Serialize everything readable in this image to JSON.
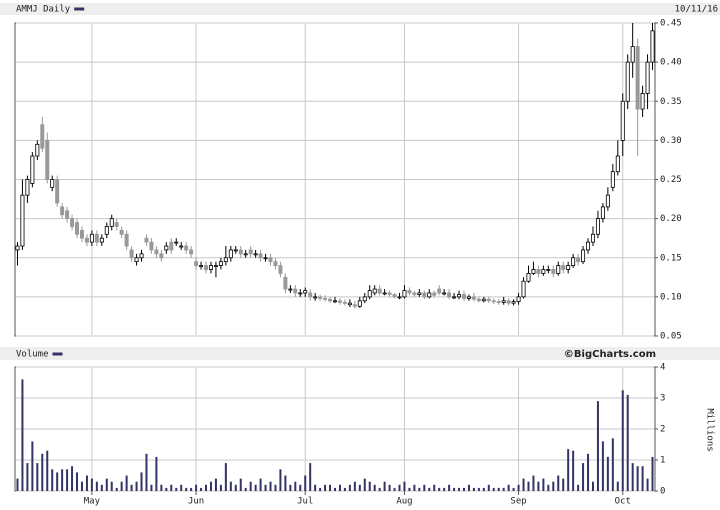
{
  "chart_data": [
    {
      "type": "candlestick",
      "title": "AMMJ Daily",
      "date": "10/11/16",
      "categories": [
        null,
        null,
        null,
        null,
        null,
        null,
        null,
        null,
        null,
        null,
        null,
        null,
        null,
        null,
        null,
        "May",
        null,
        null,
        null,
        null,
        null,
        null,
        null,
        null,
        null,
        null,
        null,
        null,
        null,
        null,
        null,
        null,
        null,
        null,
        null,
        null,
        "Jun",
        null,
        null,
        null,
        null,
        null,
        null,
        null,
        null,
        null,
        null,
        null,
        null,
        null,
        null,
        null,
        null,
        null,
        null,
        null,
        null,
        null,
        "Jul",
        null,
        null,
        null,
        null,
        null,
        null,
        null,
        null,
        null,
        null,
        null,
        null,
        null,
        null,
        null,
        null,
        null,
        null,
        null,
        "Aug",
        null,
        null,
        null,
        null,
        null,
        null,
        null,
        null,
        null,
        null,
        null,
        null,
        null,
        null,
        null,
        null,
        null,
        null,
        null,
        null,
        null,
        null,
        "Sep",
        null,
        null,
        null,
        null,
        null,
        null,
        null,
        null,
        null,
        null,
        null,
        null,
        null,
        null,
        null,
        null,
        null,
        null,
        null,
        null,
        "Oct",
        null,
        null,
        null,
        null,
        null,
        null
      ],
      "open": [
        0.16,
        0.165,
        0.23,
        0.245,
        0.28,
        0.32,
        0.3,
        0.24,
        0.25,
        0.215,
        0.21,
        0.2,
        0.195,
        0.185,
        0.175,
        0.17,
        0.18,
        0.17,
        0.18,
        0.19,
        0.195,
        0.185,
        0.18,
        0.16,
        0.145,
        0.15,
        0.175,
        0.17,
        0.16,
        0.155,
        0.16,
        0.17,
        0.17,
        0.165,
        0.165,
        0.16,
        0.145,
        0.14,
        0.14,
        0.135,
        0.14,
        0.14,
        0.145,
        0.15,
        0.16,
        0.16,
        0.155,
        0.16,
        0.155,
        0.155,
        0.15,
        0.15,
        0.145,
        0.14,
        0.125,
        0.11,
        0.11,
        0.105,
        0.105,
        0.105,
        0.1,
        0.1,
        0.098,
        0.097,
        0.095,
        0.095,
        0.093,
        0.09,
        0.09,
        0.088,
        0.095,
        0.1,
        0.105,
        0.11,
        0.105,
        0.105,
        0.103,
        0.1,
        0.1,
        0.108,
        0.105,
        0.103,
        0.105,
        0.1,
        0.105,
        0.11,
        0.105,
        0.105,
        0.1,
        0.1,
        0.103,
        0.098,
        0.1,
        0.097,
        0.095,
        0.097,
        0.095,
        0.094,
        0.093,
        0.095,
        0.092,
        0.094,
        0.1,
        0.12,
        0.13,
        0.135,
        0.13,
        0.135,
        0.135,
        0.13,
        0.14,
        0.135,
        0.14,
        0.15,
        0.145,
        0.16,
        0.17,
        0.18,
        0.2,
        0.215,
        0.24,
        0.26,
        0.3,
        0.35,
        0.4,
        0.42,
        0.34,
        0.36,
        0.4
      ],
      "high": [
        0.17,
        0.25,
        0.255,
        0.285,
        0.3,
        0.33,
        0.31,
        0.255,
        0.255,
        0.22,
        0.215,
        0.205,
        0.2,
        0.19,
        0.18,
        0.185,
        0.185,
        0.18,
        0.195,
        0.205,
        0.2,
        0.19,
        0.185,
        0.165,
        0.155,
        0.16,
        0.18,
        0.175,
        0.165,
        0.16,
        0.17,
        0.175,
        0.175,
        0.17,
        0.17,
        0.165,
        0.15,
        0.145,
        0.145,
        0.145,
        0.145,
        0.15,
        0.165,
        0.165,
        0.165,
        0.165,
        0.16,
        0.165,
        0.16,
        0.16,
        0.155,
        0.155,
        0.15,
        0.145,
        0.13,
        0.115,
        0.115,
        0.11,
        0.112,
        0.11,
        0.105,
        0.103,
        0.102,
        0.1,
        0.1,
        0.098,
        0.097,
        0.097,
        0.095,
        0.1,
        0.105,
        0.115,
        0.115,
        0.115,
        0.11,
        0.108,
        0.105,
        0.105,
        0.115,
        0.112,
        0.108,
        0.11,
        0.108,
        0.11,
        0.108,
        0.115,
        0.11,
        0.11,
        0.105,
        0.108,
        0.108,
        0.103,
        0.105,
        0.1,
        0.1,
        0.1,
        0.098,
        0.097,
        0.1,
        0.098,
        0.097,
        0.105,
        0.125,
        0.14,
        0.145,
        0.14,
        0.14,
        0.14,
        0.14,
        0.145,
        0.145,
        0.145,
        0.155,
        0.155,
        0.165,
        0.175,
        0.19,
        0.21,
        0.22,
        0.24,
        0.27,
        0.3,
        0.36,
        0.41,
        0.45,
        0.43,
        0.37,
        0.41,
        0.45
      ],
      "low": [
        0.14,
        0.16,
        0.22,
        0.24,
        0.275,
        0.285,
        0.245,
        0.235,
        0.215,
        0.2,
        0.195,
        0.185,
        0.175,
        0.17,
        0.165,
        0.165,
        0.165,
        0.165,
        0.175,
        0.185,
        0.185,
        0.175,
        0.16,
        0.145,
        0.14,
        0.145,
        0.165,
        0.155,
        0.15,
        0.145,
        0.155,
        0.155,
        0.165,
        0.16,
        0.155,
        0.15,
        0.135,
        0.135,
        0.13,
        0.13,
        0.125,
        0.135,
        0.14,
        0.145,
        0.155,
        0.15,
        0.15,
        0.15,
        0.15,
        0.145,
        0.145,
        0.14,
        0.135,
        0.125,
        0.105,
        0.105,
        0.1,
        0.1,
        0.1,
        0.095,
        0.095,
        0.095,
        0.094,
        0.092,
        0.092,
        0.09,
        0.089,
        0.087,
        0.085,
        0.086,
        0.092,
        0.097,
        0.102,
        0.102,
        0.102,
        0.1,
        0.098,
        0.097,
        0.098,
        0.102,
        0.1,
        0.1,
        0.097,
        0.098,
        0.099,
        0.102,
        0.102,
        0.097,
        0.097,
        0.097,
        0.095,
        0.095,
        0.094,
        0.093,
        0.093,
        0.092,
        0.091,
        0.09,
        0.09,
        0.089,
        0.089,
        0.09,
        0.098,
        0.118,
        0.128,
        0.125,
        0.127,
        0.13,
        0.125,
        0.127,
        0.13,
        0.13,
        0.137,
        0.14,
        0.142,
        0.155,
        0.165,
        0.175,
        0.195,
        0.21,
        0.235,
        0.255,
        0.28,
        0.34,
        0.38,
        0.28,
        0.33,
        0.34,
        0.39
      ],
      "close": [
        0.165,
        0.23,
        0.25,
        0.28,
        0.295,
        0.29,
        0.25,
        0.25,
        0.22,
        0.205,
        0.2,
        0.19,
        0.18,
        0.175,
        0.17,
        0.18,
        0.17,
        0.175,
        0.19,
        0.2,
        0.19,
        0.18,
        0.165,
        0.15,
        0.15,
        0.155,
        0.17,
        0.16,
        0.155,
        0.15,
        0.165,
        0.16,
        0.17,
        0.165,
        0.16,
        0.155,
        0.14,
        0.14,
        0.135,
        0.14,
        0.14,
        0.145,
        0.15,
        0.16,
        0.16,
        0.155,
        0.155,
        0.155,
        0.155,
        0.15,
        0.15,
        0.145,
        0.14,
        0.13,
        0.11,
        0.11,
        0.105,
        0.105,
        0.108,
        0.1,
        0.1,
        0.098,
        0.097,
        0.095,
        0.095,
        0.093,
        0.092,
        0.092,
        0.088,
        0.095,
        0.1,
        0.108,
        0.11,
        0.105,
        0.105,
        0.103,
        0.1,
        0.1,
        0.108,
        0.105,
        0.103,
        0.105,
        0.1,
        0.105,
        0.102,
        0.105,
        0.105,
        0.1,
        0.1,
        0.103,
        0.098,
        0.1,
        0.097,
        0.095,
        0.097,
        0.095,
        0.094,
        0.093,
        0.095,
        0.092,
        0.094,
        0.1,
        0.12,
        0.13,
        0.135,
        0.13,
        0.135,
        0.135,
        0.13,
        0.14,
        0.135,
        0.14,
        0.15,
        0.145,
        0.16,
        0.17,
        0.18,
        0.2,
        0.215,
        0.23,
        0.26,
        0.28,
        0.35,
        0.4,
        0.42,
        0.34,
        0.36,
        0.4,
        0.44
      ],
      "up_color": "#ffffff",
      "down_color": "#999999",
      "outline_color": "#000000",
      "ylim": [
        0.05,
        0.45
      ],
      "yticks": [
        0.05,
        {
          "value": 0.1,
          "label": "0.10"
        },
        0.15,
        {
          "value": 0.2,
          "label": "0.20"
        },
        0.25,
        {
          "value": 0.3,
          "label": "0.30"
        },
        0.35,
        {
          "value": 0.4,
          "label": "0.40"
        },
        0.45
      ],
      "grid": true
    },
    {
      "type": "bar",
      "title": "Volume",
      "source": "©BigCharts.com",
      "y_label": "Millions",
      "color": "#333366",
      "values": [
        0.4,
        3.6,
        0.9,
        1.6,
        0.9,
        1.2,
        1.3,
        0.7,
        0.6,
        0.7,
        0.7,
        0.8,
        0.6,
        0.3,
        0.5,
        0.4,
        0.3,
        0.2,
        0.4,
        0.3,
        0.1,
        0.3,
        0.5,
        0.2,
        0.3,
        0.6,
        1.2,
        0.2,
        1.1,
        0.2,
        0.1,
        0.2,
        0.1,
        0.2,
        0.1,
        0.1,
        0.2,
        0.1,
        0.2,
        0.3,
        0.4,
        0.2,
        0.9,
        0.3,
        0.2,
        0.4,
        0.1,
        0.3,
        0.2,
        0.4,
        0.2,
        0.3,
        0.2,
        0.7,
        0.5,
        0.2,
        0.3,
        0.2,
        0.5,
        0.9,
        0.2,
        0.1,
        0.2,
        0.2,
        0.1,
        0.2,
        0.1,
        0.2,
        0.3,
        0.2,
        0.4,
        0.3,
        0.2,
        0.1,
        0.3,
        0.2,
        0.1,
        0.2,
        0.3,
        0.1,
        0.2,
        0.1,
        0.2,
        0.1,
        0.2,
        0.1,
        0.1,
        0.2,
        0.1,
        0.1,
        0.1,
        0.2,
        0.1,
        0.1,
        0.1,
        0.2,
        0.1,
        0.1,
        0.1,
        0.2,
        0.1,
        0.2,
        0.4,
        0.3,
        0.5,
        0.3,
        0.4,
        0.2,
        0.3,
        0.5,
        0.4,
        1.35,
        1.3,
        0.2,
        0.9,
        1.2,
        0.3,
        2.9,
        1.6,
        1.1,
        1.7,
        0.3,
        3.25,
        3.1,
        0.9,
        0.8,
        0.8,
        0.4,
        1.1
      ],
      "ylim": [
        0,
        4
      ],
      "yticks": [
        0,
        1,
        2,
        3,
        4
      ],
      "grid": true
    }
  ]
}
